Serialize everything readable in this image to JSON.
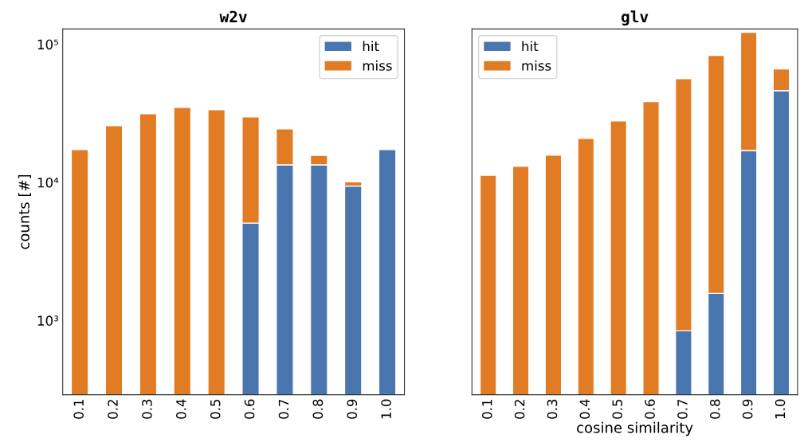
{
  "chart_data": [
    {
      "type": "bar",
      "title": "w2v",
      "ylabel": "counts [#]",
      "stacked": true,
      "log": "y",
      "legend": "top right",
      "tick_labels": "xy",
      "categories": [
        "0.1",
        "0.2",
        "0.3",
        "0.4",
        "0.5",
        "0.6",
        "0.7",
        "0.8",
        "0.9",
        "1.0"
      ],
      "ylim": [
        290,
        129000
      ],
      "yticks": [
        {
          "value": 1000,
          "label": "10³"
        },
        {
          "value": 10000,
          "label": "10⁴"
        },
        {
          "value": 100000,
          "label": "10⁵"
        }
      ],
      "series": [
        {
          "name": "hit",
          "color": "#4a76b0",
          "values": [
            null,
            null,
            null,
            null,
            null,
            5070,
            13400,
            13400,
            9400,
            17260
          ]
        },
        {
          "name": "miss",
          "color": "#e17c25",
          "values": [
            17260,
            25700,
            31400,
            34900,
            33600,
            24700,
            11000,
            2300,
            700,
            null
          ]
        }
      ]
    },
    {
      "type": "bar",
      "title": "glv",
      "xlabel": "cosine similarity",
      "stacked": true,
      "log": "y",
      "legend": "top left",
      "tick_labels": "x",
      "categories": [
        "0.1",
        "0.2",
        "0.3",
        "0.4",
        "0.5",
        "0.6",
        "0.7",
        "0.8",
        "0.9",
        "1.0"
      ],
      "ylim": [
        290,
        129000
      ],
      "series": [
        {
          "name": "hit",
          "color": "#4a76b0",
          "values": [
            null,
            null,
            null,
            null,
            null,
            null,
            841,
            1570,
            17000,
            46200
          ]
        },
        {
          "name": "miss",
          "color": "#e17c25",
          "values": [
            11270,
            13060,
            15740,
            20800,
            27900,
            38400,
            55560,
            81400,
            105000,
            20000
          ]
        }
      ]
    }
  ]
}
